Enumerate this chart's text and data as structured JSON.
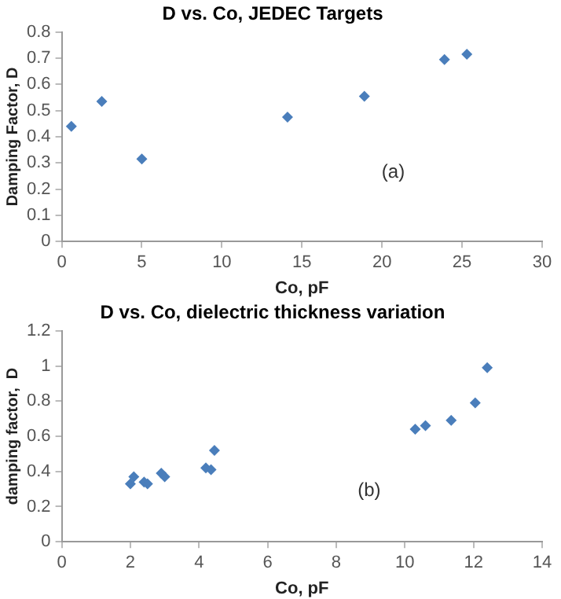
{
  "chart_data": [
    {
      "type": "scatter",
      "title": "D vs. Co, JEDEC Targets",
      "xlabel": "Co, pF",
      "ylabel": "Damping Factor, D",
      "annotations": [
        "(a)"
      ],
      "marker": "diamond",
      "grid": false,
      "legend": false,
      "xlim": [
        0,
        30
      ],
      "xticks": [
        0,
        5,
        10,
        15,
        20,
        25,
        30
      ],
      "ylim": [
        0,
        0.8
      ],
      "yticks": [
        0,
        0.1,
        0.2,
        0.3,
        0.4,
        0.5,
        0.6,
        0.7,
        0.8
      ],
      "series": [
        {
          "color": "#4a7ebb",
          "x": [
            0.6,
            2.5,
            5.0,
            14.1,
            18.9,
            23.9,
            25.3
          ],
          "values": [
            0.44,
            0.535,
            0.315,
            0.475,
            0.555,
            0.695,
            0.715
          ]
        }
      ]
    },
    {
      "type": "scatter",
      "title": "D vs. Co, dielectric thickness variation",
      "xlabel": "Co, pF",
      "ylabel": "damping factor,  D",
      "annotations": [
        "(b)"
      ],
      "marker": "diamond",
      "grid": false,
      "legend": false,
      "xlim": [
        0,
        14
      ],
      "xticks": [
        0,
        2,
        4,
        6,
        8,
        10,
        12,
        14
      ],
      "ylim": [
        0,
        1.2
      ],
      "yticks": [
        0,
        0.2,
        0.4,
        0.6,
        0.8,
        1,
        1.2
      ],
      "series": [
        {
          "color": "#4a7ebb",
          "x": [
            2.0,
            2.1,
            2.4,
            2.5,
            2.9,
            3.0,
            4.2,
            4.35,
            4.45,
            10.3,
            10.6,
            11.35,
            12.05,
            12.4
          ],
          "values": [
            0.33,
            0.37,
            0.34,
            0.33,
            0.39,
            0.37,
            0.42,
            0.41,
            0.52,
            0.64,
            0.66,
            0.69,
            0.79,
            0.99
          ]
        }
      ]
    }
  ]
}
